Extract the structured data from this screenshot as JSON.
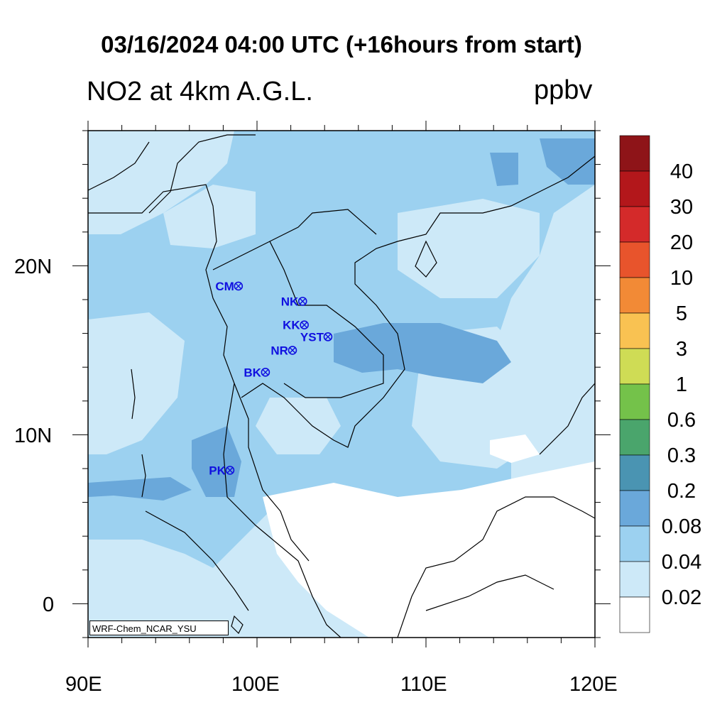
{
  "title": "03/16/2024 04:00 UTC (+16hours from start)",
  "subtitle": "NO2 at 4km A.G.L.",
  "units": "ppbv",
  "credit": "WRF-Chem_NCAR_YSU",
  "x_axis": {
    "ticks": [
      "90E",
      "100E",
      "110E",
      "120E"
    ]
  },
  "y_axis": {
    "ticks": [
      "20N",
      "10N",
      "0"
    ]
  },
  "colorbar": {
    "labels": [
      "40",
      "30",
      "20",
      "10",
      "5",
      "3",
      "1",
      "0.6",
      "0.3",
      "0.2",
      "0.08",
      "0.04",
      "0.02"
    ],
    "colors": [
      "#8e1418",
      "#b3171b",
      "#d42a2a",
      "#e8542c",
      "#f28a36",
      "#f9c252",
      "#cfdc55",
      "#74c24a",
      "#4aa56c",
      "#4a94b2",
      "#6aa8da",
      "#9cd1f0",
      "#cde9f8",
      "#ffffff"
    ]
  },
  "map": {
    "lon_range": [
      90,
      120
    ],
    "lat_range": [
      -2,
      28
    ],
    "field_colors": {
      "low": "#cde9f8",
      "mid": "#9cd1f0",
      "high": "#6aa8da",
      "peak": "#4a94b2",
      "none": "#ffffff"
    },
    "stations": [
      {
        "name": "CM",
        "lon": 98.9,
        "lat": 18.8
      },
      {
        "name": "NK",
        "lon": 102.7,
        "lat": 17.9
      },
      {
        "name": "KK",
        "lon": 102.8,
        "lat": 16.5
      },
      {
        "name": "YST",
        "lon": 104.2,
        "lat": 15.8
      },
      {
        "name": "NR",
        "lon": 102.1,
        "lat": 15.0
      },
      {
        "name": "BK",
        "lon": 100.5,
        "lat": 13.7
      },
      {
        "name": "PK",
        "lon": 98.4,
        "lat": 7.9
      }
    ]
  }
}
